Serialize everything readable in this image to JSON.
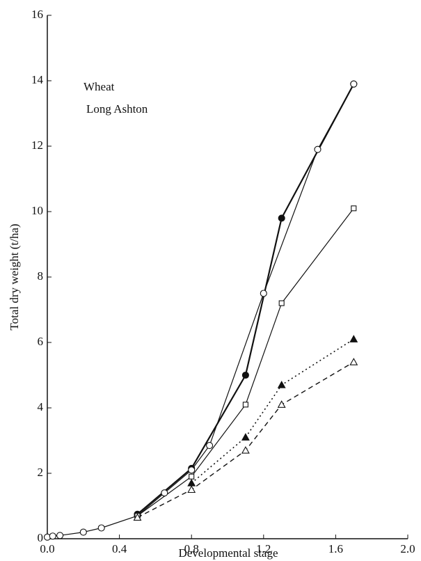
{
  "chart_data": {
    "type": "line",
    "annotations": [
      "Wheat",
      "Long Ashton"
    ],
    "xlabel": "Developmental stage",
    "ylabel": "Total dry weight (t/ha)",
    "xlim": [
      0,
      2
    ],
    "xticks": [
      {
        "value": 0,
        "label": "0.0"
      },
      0.4,
      0.8,
      1.2,
      1.6,
      {
        "value": 2,
        "label": "2.0"
      }
    ],
    "ylim": [
      0,
      16
    ],
    "yticks": [
      0,
      2,
      4,
      6,
      8,
      10,
      12,
      14,
      16
    ],
    "series": [
      {
        "marker": "filled-circle",
        "line": "thick",
        "color": "#111",
        "x": [
          0.5,
          0.8,
          1.1,
          1.3,
          1.7
        ],
        "values": [
          0.75,
          2.15,
          5.0,
          9.8,
          13.9
        ]
      },
      {
        "marker": "open-circle",
        "line": "solid",
        "color": "#111",
        "x": [
          0,
          0.03,
          0.07,
          0.2,
          0.3,
          0.5,
          0.65,
          0.8,
          0.9,
          1.2,
          1.5,
          1.7
        ],
        "values": [
          0.05,
          0.08,
          0.1,
          0.2,
          0.33,
          0.7,
          1.4,
          2.1,
          2.85,
          7.5,
          11.9,
          13.9
        ]
      },
      {
        "marker": "open-square",
        "line": "solid",
        "color": "#111",
        "x": [
          0.5,
          0.8,
          1.1,
          1.3,
          1.7
        ],
        "values": [
          0.7,
          1.9,
          4.1,
          7.2,
          10.1
        ]
      },
      {
        "marker": "filled-triangle",
        "line": "dotted",
        "color": "#111",
        "x": [
          0.8,
          1.1,
          1.3,
          1.7
        ],
        "values": [
          1.7,
          3.1,
          4.7,
          6.1
        ]
      },
      {
        "marker": "open-triangle",
        "line": "dashed",
        "color": "#111",
        "x": [
          0.5,
          0.8,
          1.1,
          1.3,
          1.7
        ],
        "values": [
          0.65,
          1.5,
          2.7,
          4.1,
          5.4
        ]
      }
    ]
  }
}
